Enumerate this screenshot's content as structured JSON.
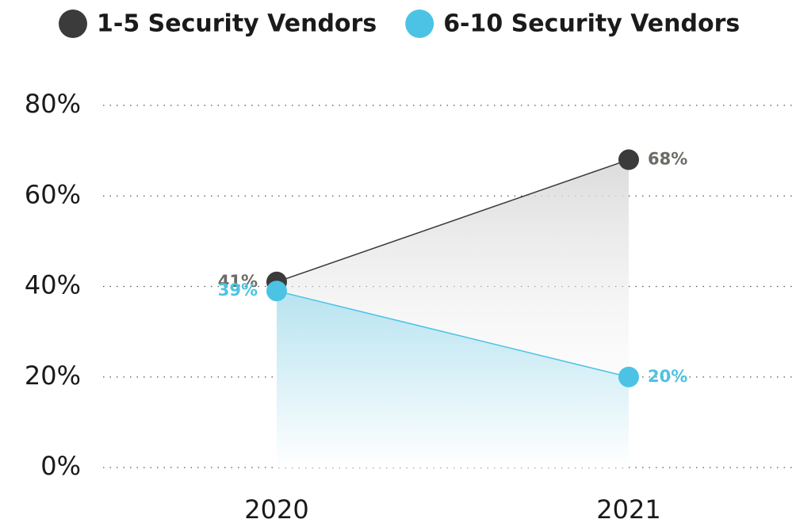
{
  "chart_data": {
    "type": "line",
    "categories": [
      "2020",
      "2021"
    ],
    "series": [
      {
        "name": "1-5 Security Vendors",
        "color": "#3b3b3b",
        "label_color": "#6b6c66",
        "values": [
          41,
          68
        ],
        "value_labels": [
          "41%",
          "68%"
        ]
      },
      {
        "name": "6-10 Security Vendors",
        "color": "#4cc3e4",
        "label_color": "#4cc3e4",
        "values": [
          39,
          20
        ],
        "value_labels": [
          "39%",
          "20%"
        ]
      }
    ],
    "ylim": [
      0,
      80
    ],
    "yticks": [
      {
        "value": 0,
        "label": "0%"
      },
      {
        "value": 20,
        "label": "20%"
      },
      {
        "value": 40,
        "label": "40%"
      },
      {
        "value": 60,
        "label": "60%"
      },
      {
        "value": 80,
        "label": "80%"
      }
    ],
    "grid": true,
    "legend": "top"
  }
}
